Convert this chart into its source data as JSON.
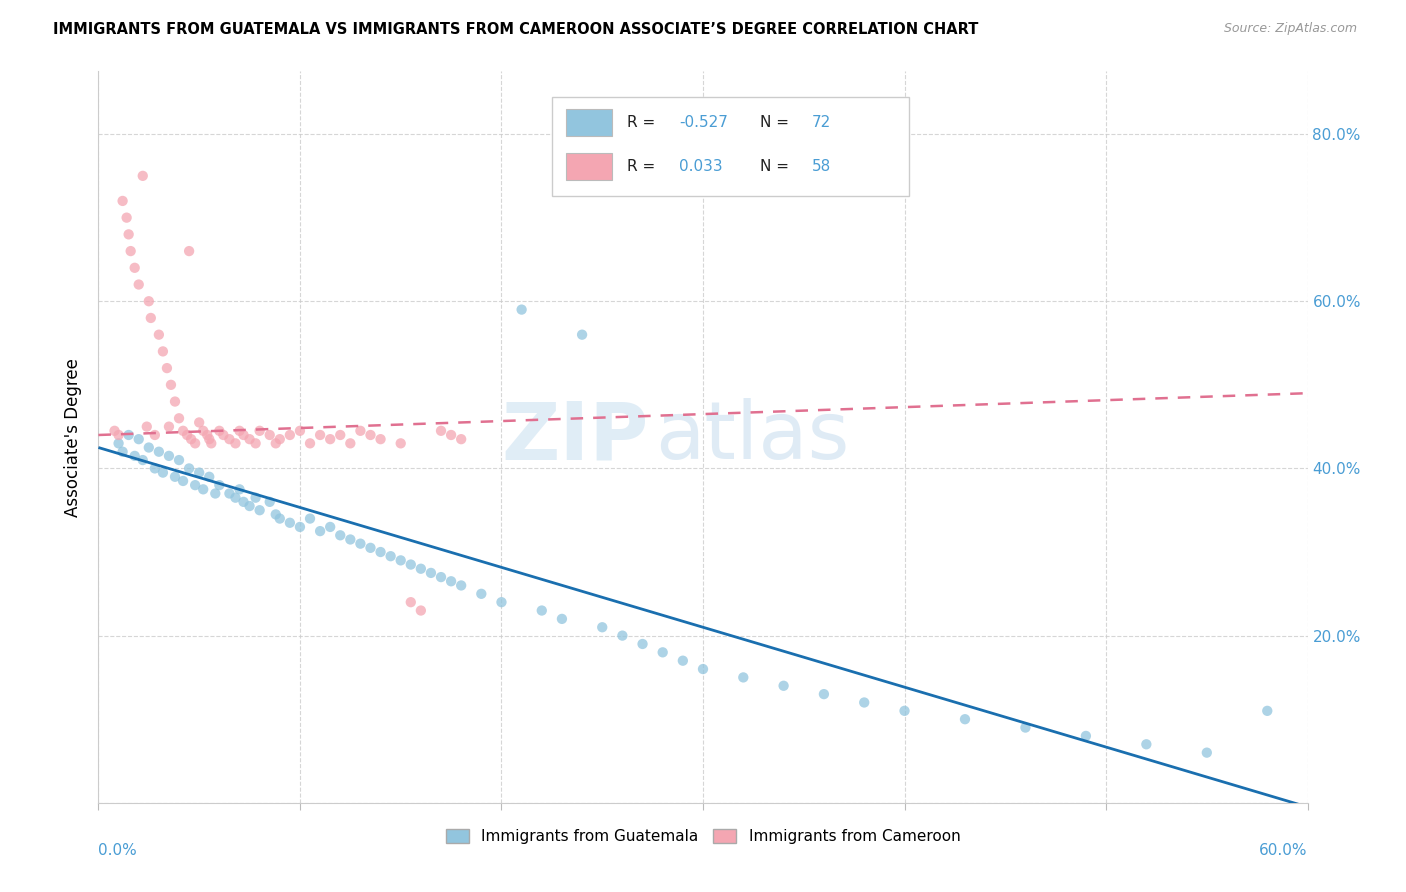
{
  "title": "IMMIGRANTS FROM GUATEMALA VS IMMIGRANTS FROM CAMEROON ASSOCIATE’S DEGREE CORRELATION CHART",
  "source": "Source: ZipAtlas.com",
  "ylabel": "Associate's Degree",
  "x_range": [
    0.0,
    0.6
  ],
  "y_range": [
    0.0,
    0.875
  ],
  "R_guatemala": -0.527,
  "N_guatemala": 72,
  "R_cameroon": 0.033,
  "N_cameroon": 58,
  "color_guatemala": "#92c5de",
  "color_cameroon": "#f4a6b2",
  "line_color_guatemala": "#1a6faf",
  "line_color_cameroon": "#e07090",
  "guatemala_x": [
    0.01,
    0.012,
    0.015,
    0.018,
    0.02,
    0.022,
    0.025,
    0.028,
    0.03,
    0.032,
    0.035,
    0.038,
    0.04,
    0.042,
    0.045,
    0.048,
    0.05,
    0.052,
    0.055,
    0.058,
    0.06,
    0.065,
    0.068,
    0.07,
    0.072,
    0.075,
    0.078,
    0.08,
    0.085,
    0.088,
    0.09,
    0.095,
    0.1,
    0.105,
    0.11,
    0.115,
    0.12,
    0.125,
    0.13,
    0.135,
    0.14,
    0.145,
    0.15,
    0.155,
    0.16,
    0.165,
    0.17,
    0.175,
    0.18,
    0.19,
    0.2,
    0.21,
    0.22,
    0.23,
    0.24,
    0.25,
    0.26,
    0.27,
    0.28,
    0.29,
    0.3,
    0.32,
    0.34,
    0.36,
    0.38,
    0.4,
    0.43,
    0.46,
    0.49,
    0.52,
    0.55,
    0.58
  ],
  "guatemala_y": [
    0.43,
    0.42,
    0.44,
    0.415,
    0.435,
    0.41,
    0.425,
    0.4,
    0.42,
    0.395,
    0.415,
    0.39,
    0.41,
    0.385,
    0.4,
    0.38,
    0.395,
    0.375,
    0.39,
    0.37,
    0.38,
    0.37,
    0.365,
    0.375,
    0.36,
    0.355,
    0.365,
    0.35,
    0.36,
    0.345,
    0.34,
    0.335,
    0.33,
    0.34,
    0.325,
    0.33,
    0.32,
    0.315,
    0.31,
    0.305,
    0.3,
    0.295,
    0.29,
    0.285,
    0.28,
    0.275,
    0.27,
    0.265,
    0.26,
    0.25,
    0.24,
    0.59,
    0.23,
    0.22,
    0.56,
    0.21,
    0.2,
    0.19,
    0.18,
    0.17,
    0.16,
    0.15,
    0.14,
    0.13,
    0.12,
    0.11,
    0.1,
    0.09,
    0.08,
    0.07,
    0.06,
    0.11
  ],
  "cameroon_x": [
    0.008,
    0.01,
    0.012,
    0.014,
    0.015,
    0.016,
    0.018,
    0.02,
    0.022,
    0.024,
    0.025,
    0.026,
    0.028,
    0.03,
    0.032,
    0.034,
    0.035,
    0.036,
    0.038,
    0.04,
    0.042,
    0.044,
    0.045,
    0.046,
    0.048,
    0.05,
    0.052,
    0.054,
    0.055,
    0.056,
    0.06,
    0.062,
    0.065,
    0.068,
    0.07,
    0.072,
    0.075,
    0.078,
    0.08,
    0.085,
    0.088,
    0.09,
    0.095,
    0.1,
    0.105,
    0.11,
    0.115,
    0.12,
    0.125,
    0.13,
    0.135,
    0.14,
    0.15,
    0.155,
    0.16,
    0.17,
    0.175,
    0.18
  ],
  "cameroon_y": [
    0.445,
    0.44,
    0.72,
    0.7,
    0.68,
    0.66,
    0.64,
    0.62,
    0.75,
    0.45,
    0.6,
    0.58,
    0.44,
    0.56,
    0.54,
    0.52,
    0.45,
    0.5,
    0.48,
    0.46,
    0.445,
    0.44,
    0.66,
    0.435,
    0.43,
    0.455,
    0.445,
    0.44,
    0.435,
    0.43,
    0.445,
    0.44,
    0.435,
    0.43,
    0.445,
    0.44,
    0.435,
    0.43,
    0.445,
    0.44,
    0.43,
    0.435,
    0.44,
    0.445,
    0.43,
    0.44,
    0.435,
    0.44,
    0.43,
    0.445,
    0.44,
    0.435,
    0.43,
    0.24,
    0.23,
    0.445,
    0.44,
    0.435
  ],
  "trend_guat_x0": 0.0,
  "trend_guat_y0": 0.425,
  "trend_guat_x1": 0.6,
  "trend_guat_y1": -0.005,
  "trend_cam_x0": 0.0,
  "trend_cam_y0": 0.44,
  "trend_cam_x1": 0.6,
  "trend_cam_y1": 0.49
}
